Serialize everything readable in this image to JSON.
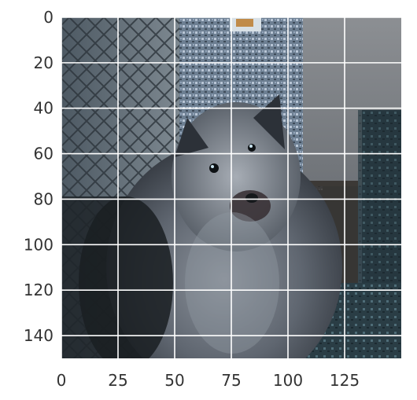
{
  "figure": {
    "image_subject": "fluffy gray dog (keeshond-like) sitting in front of a wire fence and a gray doghouse, pixelated",
    "colors": {
      "background": "#ffffff",
      "grid": "#ffffff",
      "tick_text": "#333333"
    },
    "axes": {
      "x": {
        "range": [
          0,
          150
        ],
        "ticks": [
          "0",
          "25",
          "50",
          "75",
          "100",
          "125"
        ],
        "tick_values": [
          0,
          25,
          50,
          75,
          100,
          125
        ]
      },
      "y": {
        "range": [
          0,
          150
        ],
        "inverted": true,
        "ticks": [
          "0",
          "20",
          "40",
          "60",
          "80",
          "100",
          "120",
          "140"
        ],
        "tick_values": [
          0,
          20,
          40,
          60,
          80,
          100,
          120,
          140
        ]
      },
      "grid": true
    }
  }
}
